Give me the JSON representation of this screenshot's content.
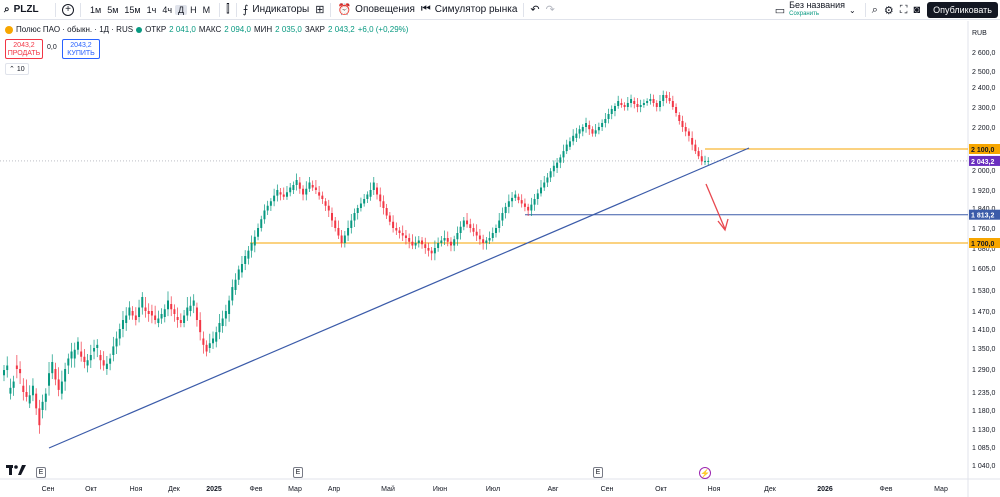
{
  "toolbar": {
    "symbol": "PLZL",
    "timeframes": [
      "1м",
      "5м",
      "15м",
      "1ч",
      "4ч",
      "Д",
      "Н",
      "М"
    ],
    "active_timeframe": "Д",
    "indicators_label": "Индикаторы",
    "alerts_label": "Оповещения",
    "replay_label": "Симулятор рынка",
    "layout_name": "Без названия",
    "layout_status": "Сохранить",
    "publish_label": "Опубликовать"
  },
  "legend": {
    "title": "Полюс ПАО · обыкн. · 1Д · RUS",
    "open_label": "ОТКР",
    "open_value": "2 041,0",
    "high_label": "МАКС",
    "high_value": "2 094,0",
    "low_label": "МИН",
    "low_value": "2 035,0",
    "close_label": "ЗАКР",
    "close_value": "2 043,2",
    "change": "+6,0 (+0,29%)"
  },
  "trade": {
    "sell_price": "2043,2",
    "sell_label": "ПРОДАТЬ",
    "spread": "0,0",
    "buy_price": "2043,2",
    "buy_label": "КУПИТЬ",
    "volume_count": "10"
  },
  "colors": {
    "up": "#089981",
    "down": "#f23645",
    "trendline": "#3b5ba9",
    "orange_level": "#f7a600",
    "blue_level": "#3b5ba9",
    "arrow": "#e8484f",
    "last_price": "#6a2fbf"
  },
  "icons": [
    "search-icon",
    "plus-icon",
    "candles-icon",
    "indicators-icon",
    "templates-icon",
    "alert-icon",
    "replay-icon",
    "undo-icon",
    "redo-icon",
    "layout-icon",
    "settings-icon",
    "fullscreen-icon",
    "camera-icon",
    "tradingview-logo"
  ],
  "chart_data": {
    "type": "candlestick",
    "currency": "RUB",
    "y_ticks": [
      "2 600,0",
      "2 500,0",
      "2 400,0",
      "2 300,0",
      "2 200,0",
      "2 100,0",
      "2 000,0",
      "1 920,0",
      "1 840,0",
      "1 760,0",
      "1 680,0",
      "1 605,0",
      "1 530,0",
      "1 470,0",
      "1 410,0",
      "1 350,0",
      "1 290,0",
      "1 235,0",
      "1 180,0",
      "1 130,0",
      "1 085,0",
      "1 040,0"
    ],
    "x_ticks": [
      "Сен",
      "Окт",
      "Ноя",
      "Дек",
      "2025",
      "Фев",
      "Мар",
      "Апр",
      "Май",
      "Июн",
      "Июл",
      "Авг",
      "Сен",
      "Окт",
      "Ноя",
      "Дек",
      "2026",
      "Фев",
      "Мар"
    ],
    "price_labels": {
      "last": "2 043,2",
      "upper_level": "2 100,0",
      "blue_level": "1 813,2",
      "lower_level": "1 700,0"
    },
    "levels": [
      2100.0,
      1813.2,
      1700.0
    ],
    "last_price": 2043.2,
    "trendline": {
      "from": [
        "Сен 2024",
        1140
      ],
      "to": [
        "Ноя 2025",
        2200
      ]
    },
    "price_path": [
      [
        1275,
        1300
      ],
      [
        1230,
        1260
      ],
      [
        1300,
        1280
      ],
      [
        1250,
        1220
      ],
      [
        1200,
        1250
      ],
      [
        1230,
        1140
      ],
      [
        1180,
        1230
      ],
      [
        1250,
        1310
      ],
      [
        1290,
        1240
      ],
      [
        1230,
        1290
      ],
      [
        1300,
        1340
      ],
      [
        1320,
        1370
      ],
      [
        1340,
        1310
      ],
      [
        1300,
        1330
      ],
      [
        1340,
        1360
      ],
      [
        1330,
        1300
      ],
      [
        1290,
        1320
      ],
      [
        1330,
        1380
      ],
      [
        1380,
        1440
      ],
      [
        1430,
        1480
      ],
      [
        1470,
        1440
      ],
      [
        1450,
        1510
      ],
      [
        1480,
        1460
      ],
      [
        1470,
        1440
      ],
      [
        1430,
        1460
      ],
      [
        1450,
        1500
      ],
      [
        1490,
        1460
      ],
      [
        1450,
        1430
      ],
      [
        1430,
        1480
      ],
      [
        1470,
        1500
      ],
      [
        1480,
        1400
      ],
      [
        1380,
        1340
      ],
      [
        1350,
        1380
      ],
      [
        1370,
        1430
      ],
      [
        1420,
        1470
      ],
      [
        1460,
        1540
      ],
      [
        1530,
        1600
      ],
      [
        1590,
        1650
      ],
      [
        1640,
        1700
      ],
      [
        1690,
        1760
      ],
      [
        1760,
        1830
      ],
      [
        1830,
        1870
      ],
      [
        1870,
        1920
      ],
      [
        1910,
        1890
      ],
      [
        1890,
        1930
      ],
      [
        1920,
        1960
      ],
      [
        1950,
        1900
      ],
      [
        1900,
        1950
      ],
      [
        1940,
        1920
      ],
      [
        1910,
        1880
      ],
      [
        1870,
        1830
      ],
      [
        1820,
        1760
      ],
      [
        1760,
        1700
      ],
      [
        1700,
        1760
      ],
      [
        1760,
        1820
      ],
      [
        1820,
        1860
      ],
      [
        1860,
        1900
      ],
      [
        1890,
        1950
      ],
      [
        1930,
        1870
      ],
      [
        1870,
        1810
      ],
      [
        1810,
        1760
      ],
      [
        1760,
        1740
      ],
      [
        1740,
        1720
      ],
      [
        1720,
        1690
      ],
      [
        1690,
        1710
      ],
      [
        1710,
        1680
      ],
      [
        1680,
        1660
      ],
      [
        1660,
        1700
      ],
      [
        1700,
        1720
      ],
      [
        1720,
        1690
      ],
      [
        1690,
        1740
      ],
      [
        1740,
        1790
      ],
      [
        1790,
        1760
      ],
      [
        1760,
        1730
      ],
      [
        1730,
        1700
      ],
      [
        1700,
        1720
      ],
      [
        1720,
        1760
      ],
      [
        1760,
        1820
      ],
      [
        1820,
        1870
      ],
      [
        1870,
        1900
      ],
      [
        1890,
        1860
      ],
      [
        1860,
        1830
      ],
      [
        1830,
        1880
      ],
      [
        1880,
        1930
      ],
      [
        1930,
        1970
      ],
      [
        1970,
        2020
      ],
      [
        2010,
        2060
      ],
      [
        2060,
        2120
      ],
      [
        2110,
        2160
      ],
      [
        2150,
        2190
      ],
      [
        2180,
        2220
      ],
      [
        2210,
        2170
      ],
      [
        2170,
        2200
      ],
      [
        2200,
        2240
      ],
      [
        2240,
        2290
      ],
      [
        2280,
        2330
      ],
      [
        2320,
        2300
      ],
      [
        2300,
        2340
      ],
      [
        2330,
        2300
      ],
      [
        2300,
        2320
      ],
      [
        2320,
        2340
      ],
      [
        2340,
        2300
      ],
      [
        2300,
        2360
      ],
      [
        2360,
        2330
      ],
      [
        2330,
        2270
      ],
      [
        2260,
        2200
      ],
      [
        2200,
        2160
      ],
      [
        2150,
        2090
      ],
      [
        2090,
        2041
      ],
      [
        2041,
        2043.2
      ]
    ]
  }
}
